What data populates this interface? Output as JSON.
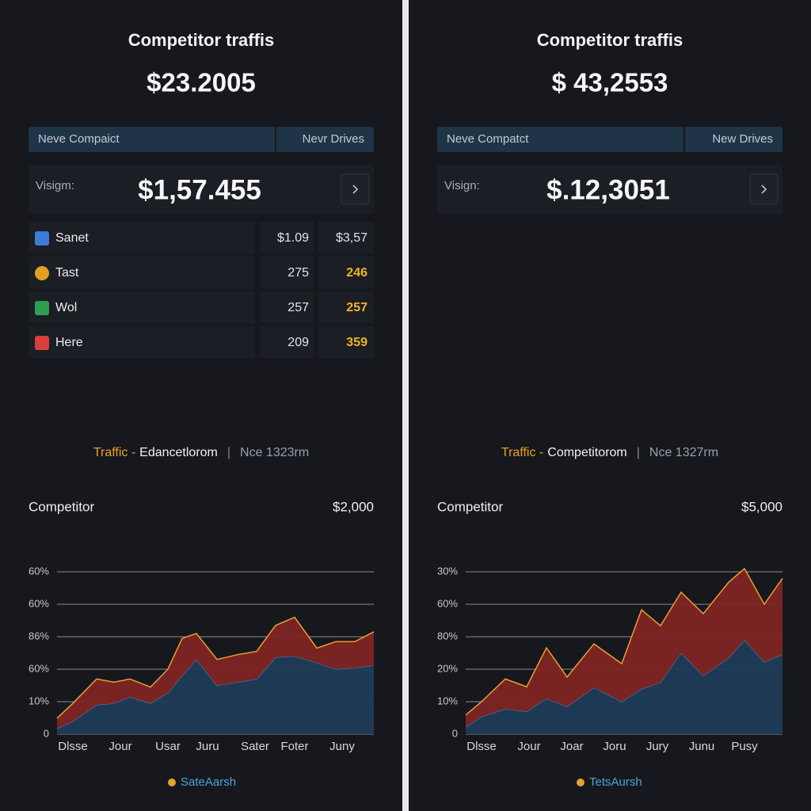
{
  "panels": [
    {
      "header": {
        "title": "Competitor traffis",
        "amount": "$23.2005"
      },
      "tabs": [
        "Neve Compaict",
        "Nevr Drives"
      ],
      "card": {
        "label": "Visigm:",
        "amount": "$1,57.455"
      },
      "table": {
        "rows": [
          [
            "Sanet",
            "$1.09",
            "$3,57"
          ],
          [
            "Tast",
            "275",
            "246"
          ],
          [
            "Wol",
            "257",
            "257"
          ],
          [
            "Here",
            "209",
            "359"
          ]
        ]
      },
      "subtitle": {
        "prefix": "Traffic -",
        "name": "Edancetlorom",
        "separator": "|",
        "note": "Nce 1323rm"
      },
      "chart_data": {
        "type": "area",
        "stacked": true,
        "title": "Competitor",
        "value": "$2,000",
        "x": [
          0,
          1,
          2.5,
          3.6,
          4.6,
          5.9,
          7,
          7.9,
          8.8,
          10.1,
          11.4,
          12.6,
          13.8,
          15,
          16.4,
          17.6,
          18.8,
          20
        ],
        "xlim": [
          0,
          20
        ],
        "xticks": [
          {
            "value": 1,
            "label": "Dlsse"
          },
          {
            "value": 4,
            "label": "Jour"
          },
          {
            "value": 7,
            "label": "Usar"
          },
          {
            "value": 9.5,
            "label": "Juru"
          },
          {
            "value": 12.5,
            "label": "Sater"
          },
          {
            "value": 15,
            "label": "Foter"
          },
          {
            "value": 18,
            "label": "Juny"
          }
        ],
        "ylim": [
          0,
          5
        ],
        "yticks": [
          0,
          {
            "value": 1,
            "label": "10%"
          },
          {
            "value": 2,
            "label": "60%"
          },
          {
            "value": 3,
            "label": "86%"
          },
          {
            "value": 4,
            "label": "60%"
          },
          {
            "value": 5,
            "label": "60%"
          }
        ],
        "grid": true,
        "series": [
          {
            "color": "#1f3b57",
            "line_color": "#3d6d92",
            "values": [
              0.17,
              0.4,
              0.9,
              0.95,
              1.15,
              0.95,
              1.27,
              1.8,
              2.3,
              1.5,
              1.6,
              1.7,
              2.37,
              2.4,
              2.2,
              2.0,
              2.05,
              2.12
            ]
          },
          {
            "name": "SateAarsh",
            "color": "#7e2424",
            "line_color": "#e8a030",
            "values": [
              0.32,
              0.55,
              0.8,
              0.65,
              0.55,
              0.5,
              0.73,
              1.15,
              0.8,
              0.8,
              0.85,
              0.85,
              0.98,
              1.2,
              0.45,
              0.85,
              0.8,
              1.03
            ]
          }
        ]
      }
    },
    {
      "header": {
        "title": "Competitor traffis",
        "amount": "$ 43,2553"
      },
      "tabs": [
        "Neve Compatct",
        "New Drives"
      ],
      "card": {
        "label": "Visign:",
        "amount": "$.12,3051"
      },
      "subtitle": {
        "prefix": "Traffic -",
        "name": "Competitorom",
        "separator": "|",
        "note": "Nce 1327rm"
      },
      "chart_data": {
        "type": "area",
        "stacked": true,
        "title": "Competitor",
        "value": "$5,000",
        "x": [
          0,
          1,
          2.5,
          3.85,
          5.1,
          6.4,
          8.1,
          9.85,
          11.1,
          12.3,
          13.6,
          15,
          16.6,
          17.6,
          18.85,
          20
        ],
        "xlim": [
          0,
          20
        ],
        "xticks": [
          {
            "value": 1,
            "label": "Dlsse"
          },
          {
            "value": 4,
            "label": "Jour"
          },
          {
            "value": 6.7,
            "label": "Joar"
          },
          {
            "value": 9.4,
            "label": "Joru"
          },
          {
            "value": 12.1,
            "label": "Jury"
          },
          {
            "value": 14.9,
            "label": "Junu"
          },
          {
            "value": 17.6,
            "label": "Pusy"
          }
        ],
        "ylim": [
          0,
          5
        ],
        "yticks": [
          0,
          {
            "value": 1,
            "label": "10%"
          },
          {
            "value": 2,
            "label": "20%"
          },
          {
            "value": 3,
            "label": "80%"
          },
          {
            "value": 4,
            "label": "60%"
          },
          {
            "value": 5,
            "label": "30%"
          }
        ],
        "grid": true,
        "series": [
          {
            "color": "#1f3b57",
            "line_color": "#3d6d92",
            "values": [
              0.22,
              0.54,
              0.78,
              0.7,
              1.1,
              0.85,
              1.44,
              1.0,
              1.39,
              1.6,
              2.5,
              1.8,
              2.35,
              2.9,
              2.22,
              2.46
            ]
          },
          {
            "name": "TetsAursh",
            "color": "#7e2424",
            "line_color": "#e8a030",
            "values": [
              0.37,
              0.46,
              0.92,
              0.76,
              1.56,
              0.91,
              1.34,
              1.17,
              2.44,
              1.74,
              1.87,
              1.91,
              2.33,
              2.2,
              1.78,
              2.34
            ]
          }
        ]
      }
    }
  ]
}
